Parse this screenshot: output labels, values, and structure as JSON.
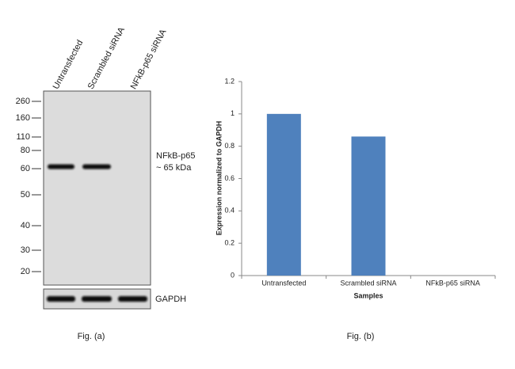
{
  "blot": {
    "lanes": [
      "Untransfected",
      "Scrambled siRNA",
      "NFkB-p65 siRNA"
    ],
    "markers": [
      "260",
      "160",
      "110",
      "80",
      "60",
      "50",
      "40",
      "30",
      "20"
    ],
    "target": "NFkB-p65",
    "size": "~ 65 kDa",
    "loading": "GAPDH",
    "caption": "Fig. (a)"
  },
  "chart_data": {
    "type": "bar",
    "ylabel": "Expression  normalized to GAPDH",
    "xlabel": "Samples",
    "categories": [
      "Untransfected",
      "Scrambled siRNA",
      "NFkB-p65 siRNA"
    ],
    "values": [
      1,
      0.86,
      0
    ],
    "color": "#4f81bd",
    "ylim": [
      0,
      1.2
    ],
    "yticks": [
      0,
      0.2,
      0.4,
      0.6,
      0.8,
      1,
      1.2
    ],
    "caption": "Fig. (b)"
  }
}
